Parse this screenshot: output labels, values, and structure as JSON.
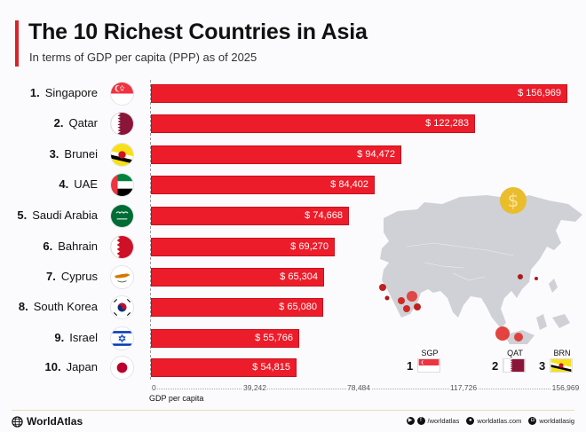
{
  "header": {
    "title": "The 10 Richest Countries in Asia",
    "subtitle": "In terms of GDP per capita (PPP) as of 2025"
  },
  "colors": {
    "bar": "#ed1c2a",
    "accent": "#d8232a",
    "map_land": "#cfd1d6",
    "coin": "#e9bd2c"
  },
  "chart_data": {
    "type": "bar",
    "orientation": "horizontal",
    "title": "The 10 Richest Countries in Asia",
    "subtitle": "In terms of GDP per capita (PPP) as of 2025",
    "xlabel": "GDP per capita",
    "ylabel": "",
    "categories": [
      "Singapore",
      "Qatar",
      "Brunei",
      "UAE",
      "Saudi Arabia",
      "Bahrain",
      "Cyprus",
      "South Korea",
      "Israel",
      "Japan"
    ],
    "values": [
      156969,
      122283,
      94472,
      84402,
      74668,
      69270,
      65304,
      65080,
      55766,
      54815
    ],
    "value_labels": [
      "$ 156,969",
      "$ 122,283",
      "$ 94,472",
      "$ 84,402",
      "$ 74,668",
      "$ 69,270",
      "$ 65,304",
      "$ 65,080",
      "$ 55,766",
      "$ 54,815"
    ],
    "xticks": [
      "0",
      "39,242",
      "78,484",
      "117,726",
      "156,969"
    ],
    "xlim": [
      0,
      156969
    ],
    "grid": false,
    "legend": null
  },
  "rows": [
    {
      "rank": "1.",
      "name": "Singapore",
      "value": "$ 156,969",
      "flag": "singapore-flag"
    },
    {
      "rank": "2.",
      "name": "Qatar",
      "value": "$ 122,283",
      "flag": "qatar-flag"
    },
    {
      "rank": "3.",
      "name": "Brunei",
      "value": "$ 94,472",
      "flag": "brunei-flag"
    },
    {
      "rank": "4.",
      "name": "UAE",
      "value": "$ 84,402",
      "flag": "uae-flag"
    },
    {
      "rank": "5.",
      "name": "Saudi Arabia",
      "value": "$ 74,668",
      "flag": "saudi-arabia-flag"
    },
    {
      "rank": "6.",
      "name": "Bahrain",
      "value": "$ 69,270",
      "flag": "bahrain-flag"
    },
    {
      "rank": "7.",
      "name": "Cyprus",
      "value": "$ 65,304",
      "flag": "cyprus-flag"
    },
    {
      "rank": "8.",
      "name": "South Korea",
      "value": "$ 65,080",
      "flag": "south-korea-flag"
    },
    {
      "rank": "9.",
      "name": "Israel",
      "value": "$ 55,766",
      "flag": "israel-flag"
    },
    {
      "rank": "10.",
      "name": "Japan",
      "value": "$ 54,815",
      "flag": "japan-flag"
    }
  ],
  "axis": {
    "ticks": [
      "0",
      "39,242",
      "78,484",
      "117,726",
      "156,969"
    ],
    "label": "GDP per capita"
  },
  "map": {
    "coin_symbol": "$",
    "top3": [
      {
        "rank": "1",
        "code": "SGP"
      },
      {
        "rank": "2",
        "code": "QAT"
      },
      {
        "rank": "3",
        "code": "BRN"
      }
    ]
  },
  "footer": {
    "brand": "WorldAtlas",
    "social_handle": "/worldatlas",
    "website": "worldatlas.com",
    "instagram": "worldatlasig"
  }
}
